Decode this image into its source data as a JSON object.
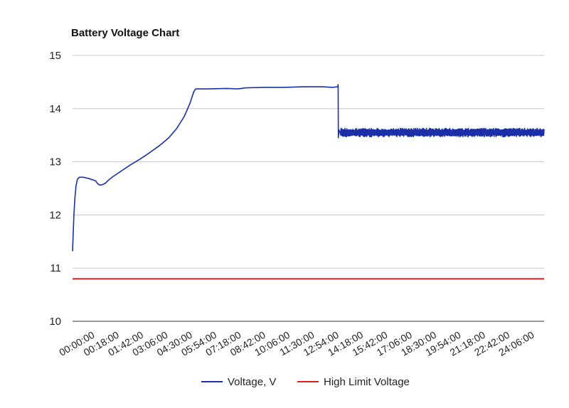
{
  "chart_data": {
    "type": "line",
    "title": "Battery Voltage Chart",
    "xlabel": "",
    "ylabel": "",
    "ylim": [
      10,
      15
    ],
    "yticks": [
      "10",
      "11",
      "12",
      "13",
      "14",
      "15"
    ],
    "categories": [
      "00:00:00",
      "00:18:00",
      "01:42:00",
      "03:06:00",
      "04:30:00",
      "05:54:00",
      "07:18:00",
      "08:42:00",
      "10:06:00",
      "11:30:00",
      "12:54:00",
      "14:18:00",
      "15:42:00",
      "17:06:00",
      "18:30:00",
      "19:54:00",
      "21:18:00",
      "22:42:00",
      "24:06:00"
    ],
    "grid": true,
    "legend": "bottom",
    "series": [
      {
        "name": "Voltage, V",
        "color": "#1a2fa8",
        "points": [
          [
            0,
            11.32
          ],
          [
            0.03,
            11.6
          ],
          [
            0.07,
            12.0
          ],
          [
            0.12,
            12.3
          ],
          [
            0.18,
            12.55
          ],
          [
            0.25,
            12.67
          ],
          [
            0.35,
            12.71
          ],
          [
            0.55,
            12.71
          ],
          [
            0.8,
            12.69
          ],
          [
            1.05,
            12.66
          ],
          [
            1.2,
            12.64
          ],
          [
            1.3,
            12.59
          ],
          [
            1.42,
            12.56
          ],
          [
            1.55,
            12.57
          ],
          [
            1.72,
            12.6
          ],
          [
            1.85,
            12.65
          ],
          [
            2.1,
            12.72
          ],
          [
            2.5,
            12.82
          ],
          [
            3.0,
            12.94
          ],
          [
            3.5,
            13.05
          ],
          [
            4.0,
            13.17
          ],
          [
            4.5,
            13.3
          ],
          [
            5.0,
            13.45
          ],
          [
            5.4,
            13.62
          ],
          [
            5.8,
            13.85
          ],
          [
            6.1,
            14.1
          ],
          [
            6.3,
            14.32
          ],
          [
            6.4,
            14.37
          ],
          [
            7.0,
            14.37
          ],
          [
            8.0,
            14.38
          ],
          [
            8.6,
            14.37
          ],
          [
            9.0,
            14.39
          ],
          [
            10.0,
            14.4
          ],
          [
            11.0,
            14.4
          ],
          [
            12.0,
            14.41
          ],
          [
            13.0,
            14.41
          ],
          [
            13.5,
            14.4
          ],
          [
            13.78,
            14.41
          ],
          [
            13.8,
            14.45
          ],
          [
            13.81,
            13.45
          ],
          [
            13.84,
            13.6
          ],
          [
            13.9,
            13.55
          ]
        ],
        "noise_band": {
          "from": 13.9,
          "to": 24.5,
          "min": 13.47,
          "max": 13.63
        }
      },
      {
        "name": "High Limit Voltage",
        "color": "#e0201b",
        "points": [
          [
            0,
            10.8
          ],
          [
            24.5,
            10.8
          ]
        ]
      }
    ]
  }
}
